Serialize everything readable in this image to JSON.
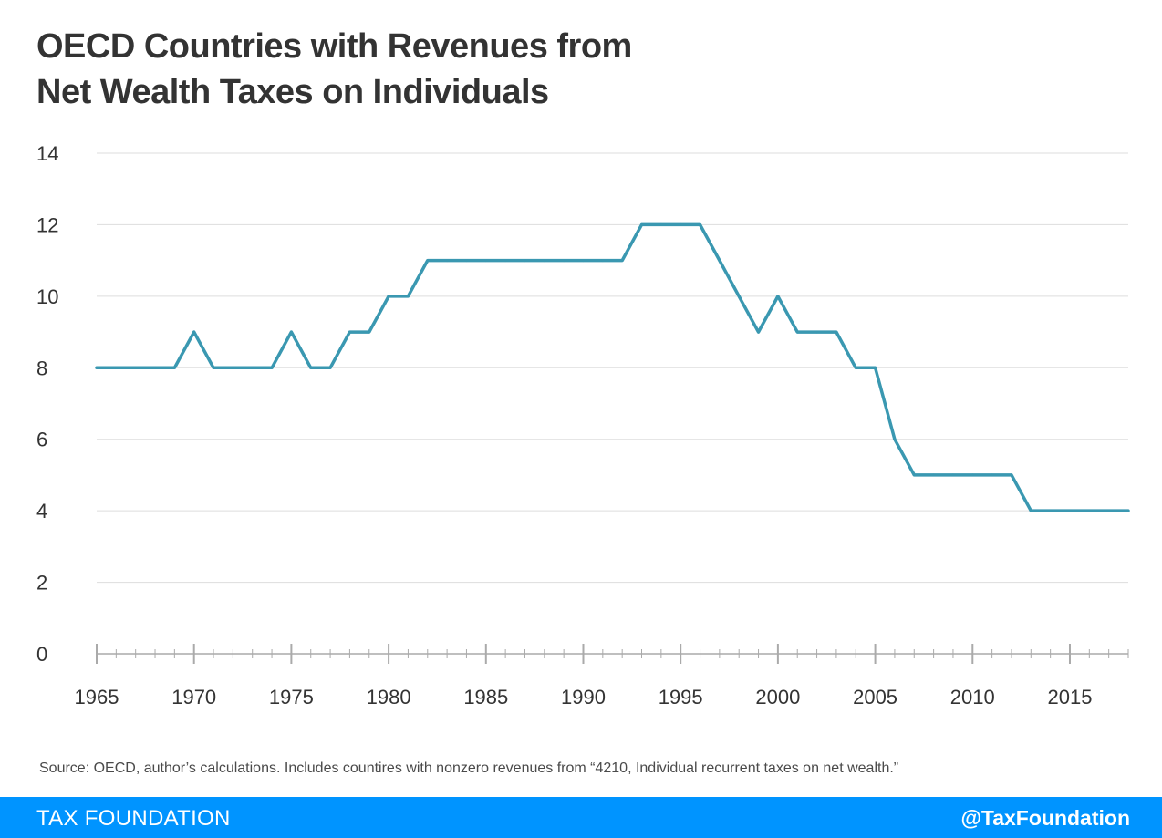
{
  "title": {
    "line1": "OECD Countries with Revenues from",
    "line2": "Net Wealth Taxes on Individuals"
  },
  "source": "Source: OECD, author’s calculations. Includes countires with nonzero revenues from “4210, Individual recurrent taxes on net wealth.”",
  "footer": {
    "brand": "TAX FOUNDATION",
    "handle": "@TaxFoundation",
    "color": "#0094ff"
  },
  "chart_data": {
    "type": "line",
    "title": "OECD Countries with Revenues from Net Wealth Taxes on Individuals",
    "xlabel": "",
    "ylabel": "",
    "xlim": [
      1965,
      2018
    ],
    "ylim": [
      0,
      14
    ],
    "x_ticks": [
      "1965",
      "1970",
      "1975",
      "1980",
      "1985",
      "1990",
      "1995",
      "2000",
      "2005",
      "2010",
      "2015"
    ],
    "y_ticks": [
      "0",
      "2",
      "4",
      "6",
      "8",
      "10",
      "12",
      "14"
    ],
    "grid": true,
    "line_color": "#3a98b1",
    "series": [
      {
        "x": [
          1965,
          1966,
          1967,
          1968,
          1969,
          1970,
          1971,
          1972,
          1973,
          1974,
          1975,
          1976,
          1977,
          1978,
          1979,
          1980,
          1981,
          1982,
          1983,
          1984,
          1985,
          1986,
          1987,
          1988,
          1989,
          1990,
          1991,
          1992,
          1993,
          1994,
          1995,
          1996,
          1997,
          1998,
          1999,
          2000,
          2001,
          2002,
          2003,
          2004,
          2005,
          2006,
          2007,
          2008,
          2009,
          2010,
          2011,
          2012,
          2013,
          2014,
          2015,
          2016,
          2017,
          2018
        ],
        "values": [
          8,
          8,
          8,
          8,
          8,
          9,
          8,
          8,
          8,
          8,
          9,
          8,
          8,
          9,
          9,
          10,
          10,
          11,
          11,
          11,
          11,
          11,
          11,
          11,
          11,
          11,
          11,
          11,
          12,
          12,
          12,
          12,
          11,
          10,
          9,
          10,
          9,
          9,
          9,
          8,
          8,
          6,
          5,
          5,
          5,
          5,
          5,
          5,
          4,
          4,
          4,
          4,
          4,
          4
        ]
      }
    ]
  }
}
